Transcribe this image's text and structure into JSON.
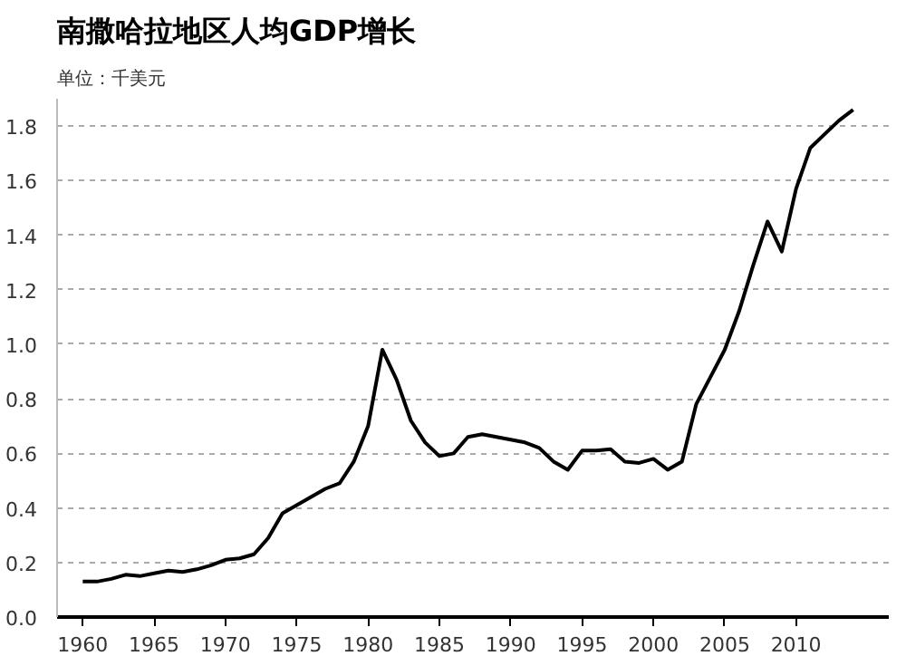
{
  "chart_data": {
    "type": "line",
    "title": "南撒哈拉地区人均GDP增长",
    "subtitle": "单位：千美元",
    "x": [
      1960,
      1961,
      1962,
      1963,
      1964,
      1965,
      1966,
      1967,
      1968,
      1969,
      1970,
      1971,
      1972,
      1973,
      1974,
      1975,
      1976,
      1977,
      1978,
      1979,
      1980,
      1981,
      1982,
      1983,
      1984,
      1985,
      1986,
      1987,
      1988,
      1989,
      1990,
      1991,
      1992,
      1993,
      1994,
      1995,
      1996,
      1997,
      1998,
      1999,
      2000,
      2001,
      2002,
      2003,
      2004,
      2005,
      2006,
      2007,
      2008,
      2009,
      2010,
      2011,
      2012,
      2013,
      2014
    ],
    "series": [
      {
        "color": "#000000",
        "values": [
          0.13,
          0.13,
          0.14,
          0.155,
          0.15,
          0.16,
          0.17,
          0.165,
          0.175,
          0.19,
          0.21,
          0.215,
          0.23,
          0.29,
          0.38,
          0.41,
          0.44,
          0.47,
          0.49,
          0.57,
          0.7,
          0.98,
          0.87,
          0.72,
          0.64,
          0.59,
          0.6,
          0.66,
          0.67,
          0.66,
          0.65,
          0.64,
          0.62,
          0.57,
          0.54,
          0.61,
          0.61,
          0.615,
          0.57,
          0.565,
          0.58,
          0.54,
          0.57,
          0.78,
          0.88,
          0.98,
          1.12,
          1.29,
          1.45,
          1.34,
          1.57,
          1.72,
          1.77,
          1.82,
          1.86
        ]
      }
    ],
    "xlim": [
      1958.2,
      2016.5
    ],
    "ylim": [
      0,
      1.9
    ],
    "xticks": [
      1960,
      1965,
      1970,
      1975,
      1980,
      1985,
      1990,
      1995,
      2000,
      2005,
      2010
    ],
    "yticks": [
      {
        "value": 0,
        "label": "0.0"
      },
      {
        "value": 0.2,
        "label": "0.2"
      },
      {
        "value": 0.4,
        "label": "0.4"
      },
      {
        "value": 0.6,
        "label": "0.6"
      },
      {
        "value": 0.8,
        "label": "0.8"
      },
      {
        "value": 1,
        "label": "1.0"
      },
      {
        "value": 1.2,
        "label": "1.2"
      },
      {
        "value": 1.4,
        "label": "1.4"
      },
      {
        "value": 1.6,
        "label": "1.6"
      },
      {
        "value": 1.8,
        "label": "1.8"
      }
    ],
    "grid": "y",
    "line_style": "solid"
  }
}
